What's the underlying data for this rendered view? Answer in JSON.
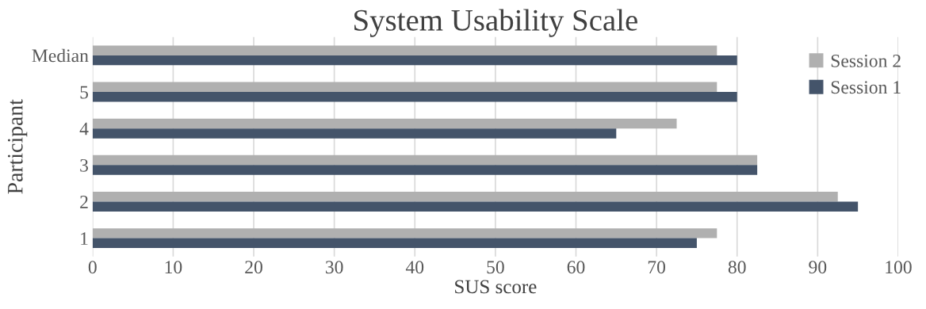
{
  "chart_data": {
    "type": "bar",
    "orientation": "horizontal",
    "title": "System Usability Scale",
    "xlabel": "SUS score",
    "ylabel": "Participant",
    "categories": [
      "Median",
      "5",
      "4",
      "3",
      "2",
      "1"
    ],
    "series": [
      {
        "name": "Session 2",
        "color": "#b0b0b0",
        "values": [
          77.5,
          77.5,
          72.5,
          82.5,
          92.5,
          77.5
        ]
      },
      {
        "name": "Session 1",
        "color": "#44546a",
        "values": [
          80,
          80,
          65,
          82.5,
          95,
          75
        ]
      }
    ],
    "xlim": [
      0,
      100
    ],
    "xticks": [
      0,
      10,
      20,
      30,
      40,
      50,
      60,
      70,
      80,
      90,
      100
    ],
    "grid": "x",
    "legend": "top right"
  }
}
